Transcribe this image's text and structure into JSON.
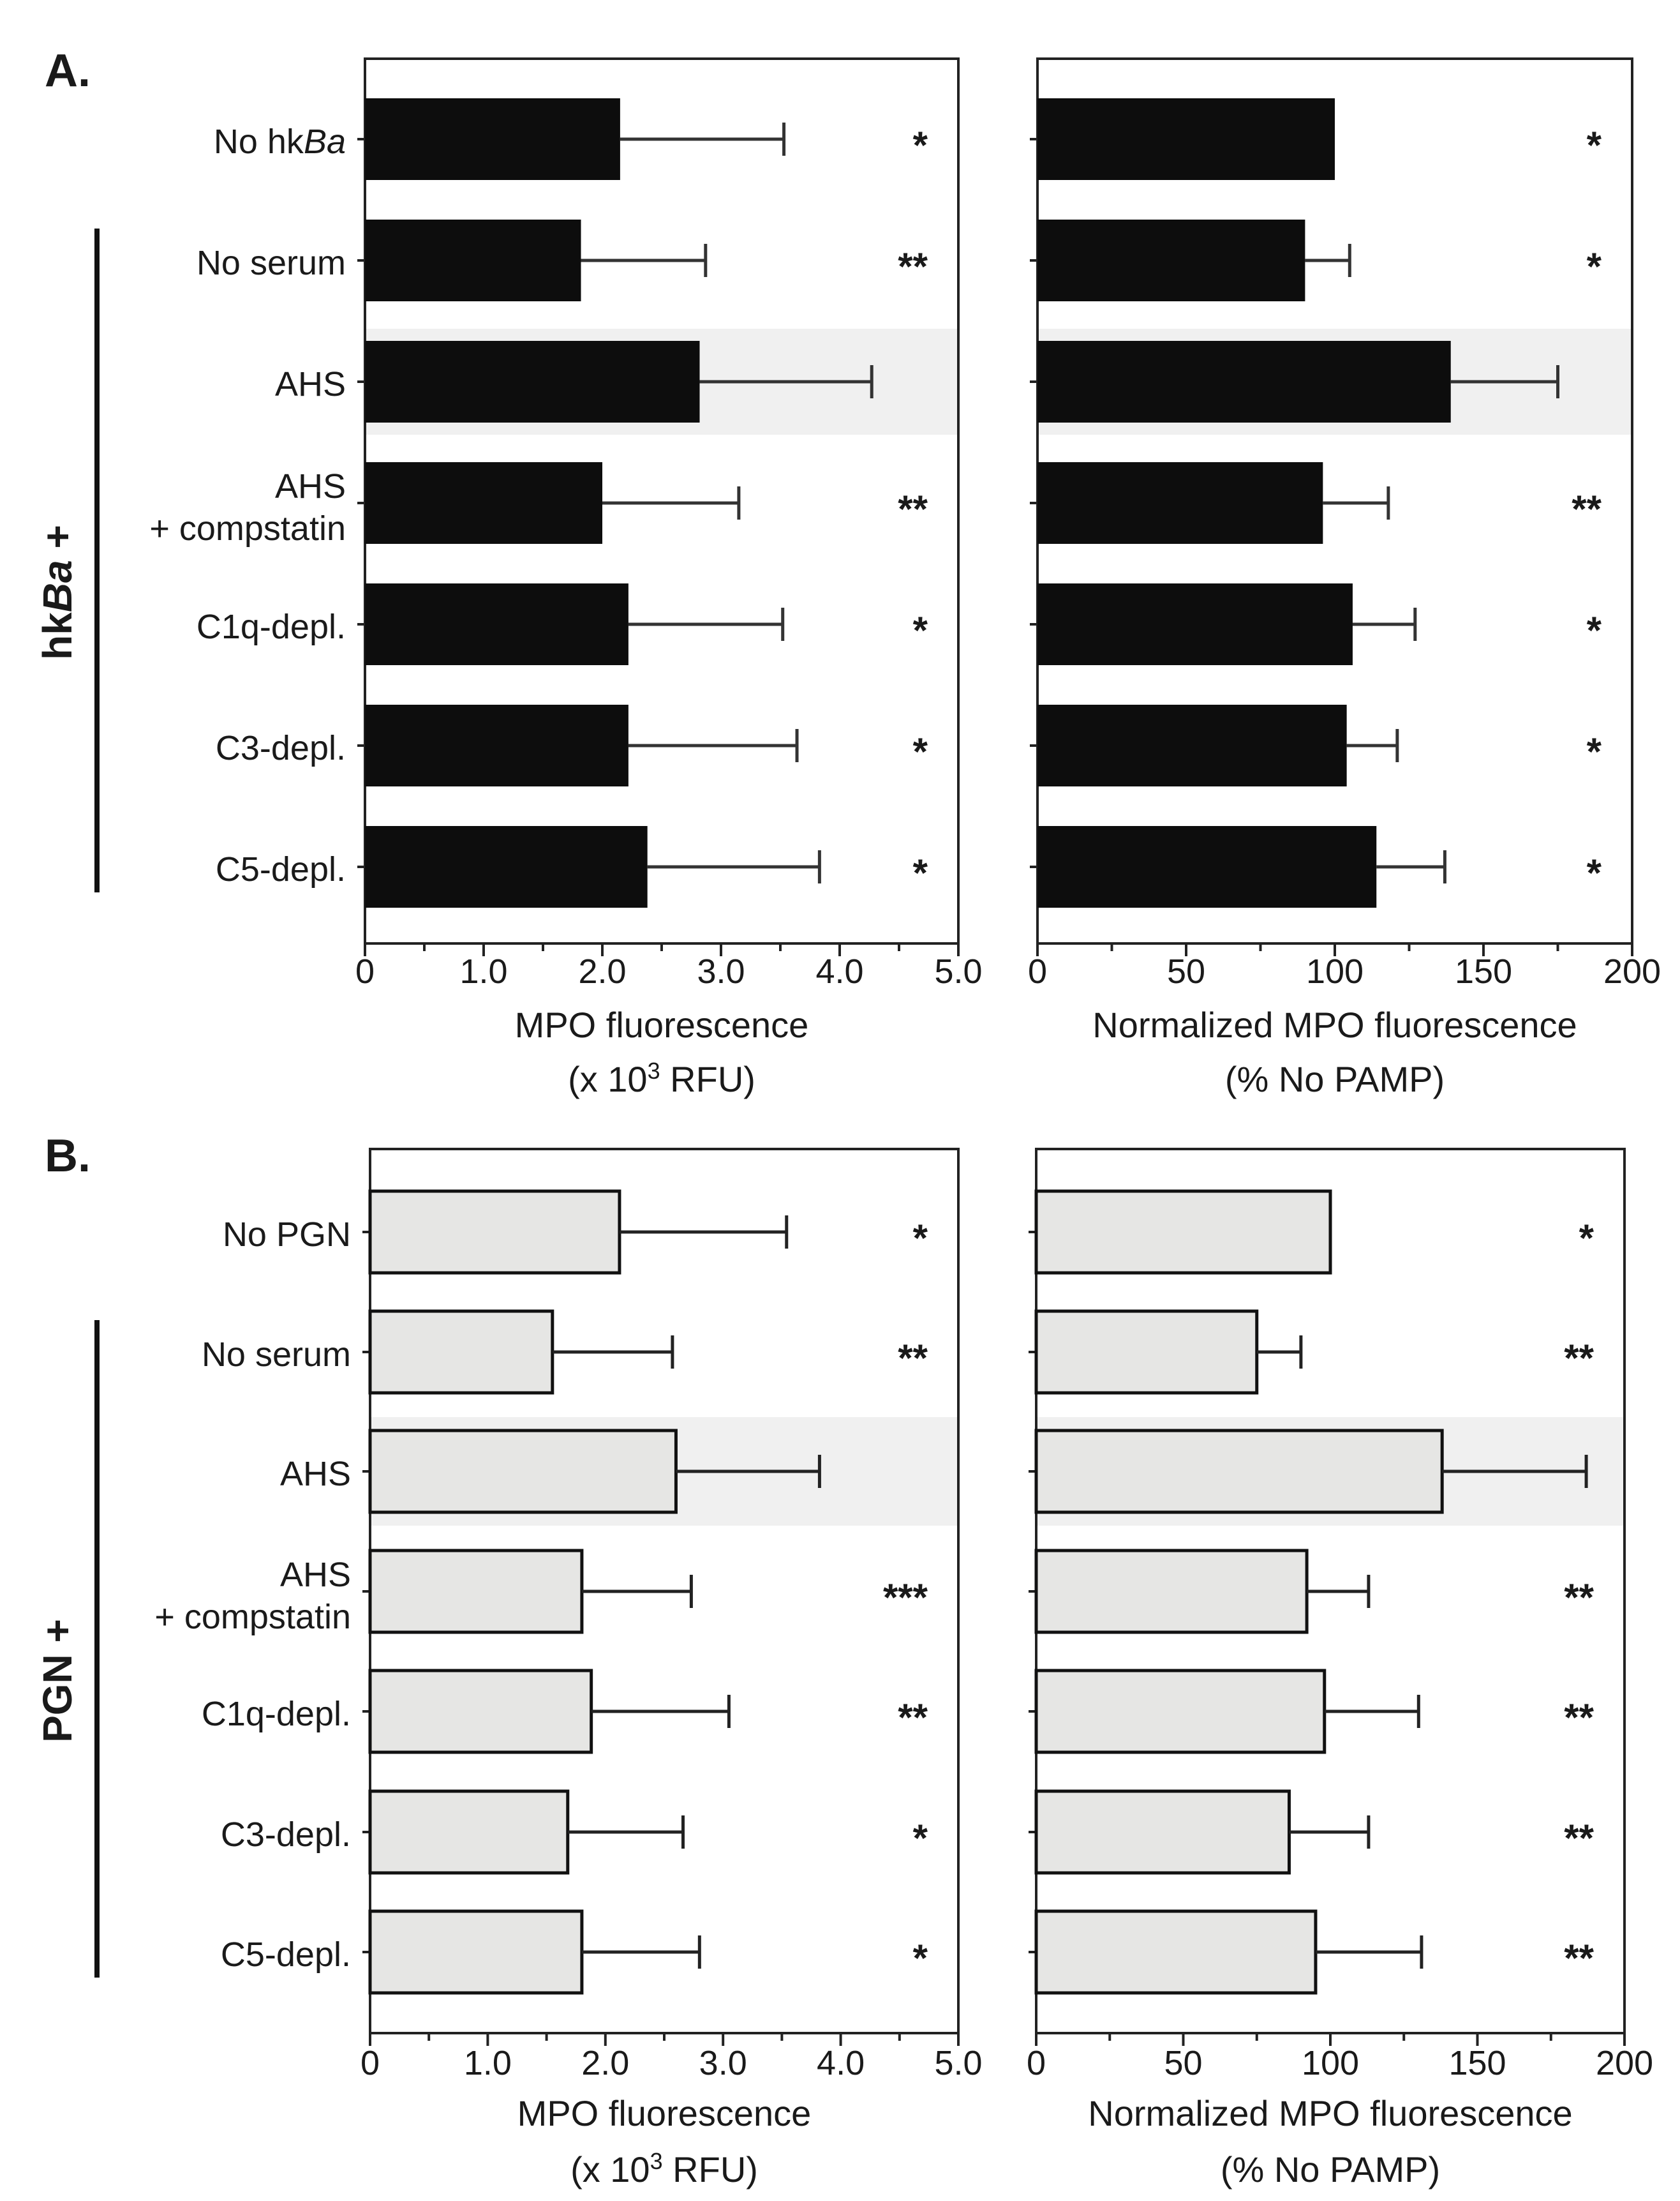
{
  "colors": {
    "dark_bar": "#0d0d0d",
    "light_bar": "#e6e6e4",
    "bar_edge": "#111111",
    "highlight_band": "#f0f0f0",
    "error_bar": "#333333"
  },
  "chart_data": [
    {
      "panel": "A.",
      "group_label_bold": "hkBa",
      "group_label_suffix": " +",
      "categories": [
        {
          "plain": "No hk",
          "italic": "Ba"
        },
        {
          "plain": "No serum"
        },
        {
          "plain": "AHS"
        },
        {
          "line1": "AHS",
          "line2": "+ compstatin"
        },
        {
          "plain": "C1q-depl."
        },
        {
          "plain": "C3-depl."
        },
        {
          "plain": "C5-depl."
        }
      ],
      "highlight_index": 2,
      "bracket_rows": [
        1,
        6
      ],
      "bar_color": "dark",
      "subcharts": [
        {
          "type": "bar",
          "orientation": "horizontal",
          "xlabel_line1": "MPO fluorescence",
          "xlabel_line2_prefix": "(x 10",
          "xlabel_line2_sup": "3",
          "xlabel_line2_suffix": " RFU)",
          "xlim": [
            0,
            5.0
          ],
          "ticks": [
            0,
            1.0,
            2.0,
            3.0,
            4.0,
            5.0
          ],
          "tick_labels": [
            "0",
            "1.0",
            "2.0",
            "3.0",
            "4.0",
            "5.0"
          ],
          "minor_step": 0.5,
          "values": [
            2.15,
            1.82,
            2.82,
            2.0,
            2.22,
            2.22,
            2.38
          ],
          "errors": [
            1.38,
            1.05,
            1.45,
            1.15,
            1.3,
            1.42,
            1.45
          ],
          "significance": [
            "*",
            "**",
            "",
            "**",
            "*",
            "*",
            "*"
          ]
        },
        {
          "type": "bar",
          "orientation": "horizontal",
          "xlabel_line1": "Normalized MPO fluorescence",
          "xlabel_line2_prefix": "(% No PAMP)",
          "xlabel_line2_sup": "",
          "xlabel_line2_suffix": "",
          "xlim": [
            0,
            200
          ],
          "ticks": [
            0,
            50,
            100,
            150,
            200
          ],
          "tick_labels": [
            "0",
            "50",
            "100",
            "150",
            "200"
          ],
          "minor_step": 25,
          "values": [
            100,
            90,
            139,
            96,
            106,
            104,
            114
          ],
          "errors": [
            0,
            15,
            36,
            22,
            21,
            17,
            23
          ],
          "significance": [
            "*",
            "*",
            "",
            "**",
            "*",
            "*",
            "*"
          ]
        }
      ]
    },
    {
      "panel": "B.",
      "group_label_bold": "PGN",
      "group_label_suffix": " +",
      "categories": [
        {
          "plain": "No PGN"
        },
        {
          "plain": "No serum"
        },
        {
          "plain": "AHS"
        },
        {
          "line1": "AHS",
          "line2": "+ compstatin"
        },
        {
          "plain": "C1q-depl."
        },
        {
          "plain": "C3-depl."
        },
        {
          "plain": "C5-depl."
        }
      ],
      "highlight_index": 2,
      "bracket_rows": [
        1,
        6
      ],
      "bar_color": "light",
      "subcharts": [
        {
          "type": "bar",
          "orientation": "horizontal",
          "xlabel_line1": "MPO fluorescence",
          "xlabel_line2_prefix": "(x 10",
          "xlabel_line2_sup": "3",
          "xlabel_line2_suffix": " RFU)",
          "xlim": [
            0,
            5.0
          ],
          "ticks": [
            0,
            1.0,
            2.0,
            3.0,
            4.0,
            5.0
          ],
          "tick_labels": [
            "0",
            "1.0",
            "2.0",
            "3.0",
            "4.0",
            "5.0"
          ],
          "minor_step": 0.5,
          "values": [
            2.12,
            1.55,
            2.6,
            1.8,
            1.88,
            1.68,
            1.8
          ],
          "errors": [
            1.42,
            1.02,
            1.22,
            0.93,
            1.17,
            0.98,
            1.0
          ],
          "significance": [
            "*",
            "**",
            "",
            "***",
            "**",
            "*",
            "*"
          ]
        },
        {
          "type": "bar",
          "orientation": "horizontal",
          "xlabel_line1": "Normalized MPO fluorescence",
          "xlabel_line2_prefix": "(% No PAMP)",
          "xlabel_line2_sup": "",
          "xlabel_line2_suffix": "",
          "xlim": [
            0,
            200
          ],
          "ticks": [
            0,
            50,
            100,
            150,
            200
          ],
          "tick_labels": [
            "0",
            "50",
            "100",
            "150",
            "200"
          ],
          "minor_step": 25,
          "values": [
            100,
            75,
            138,
            92,
            98,
            86,
            95
          ],
          "errors": [
            0,
            15,
            49,
            21,
            32,
            27,
            36
          ],
          "significance": [
            "*",
            "**",
            "",
            "**",
            "**",
            "**",
            "**"
          ]
        }
      ]
    }
  ]
}
